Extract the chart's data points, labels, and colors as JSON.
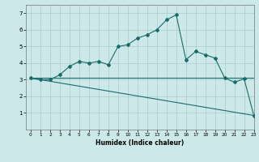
{
  "title": "",
  "xlabel": "Humidex (Indice chaleur)",
  "ylabel": "",
  "xlim": [
    -0.5,
    23
  ],
  "ylim": [
    0,
    7.5
  ],
  "yticks": [
    1,
    2,
    3,
    4,
    5,
    6,
    7
  ],
  "xticks": [
    0,
    1,
    2,
    3,
    4,
    5,
    6,
    7,
    8,
    9,
    10,
    11,
    12,
    13,
    14,
    15,
    16,
    17,
    18,
    19,
    20,
    21,
    22,
    23
  ],
  "bg_color": "#cce8e8",
  "grid_color": "#aacccc",
  "line_color": "#1a6b6b",
  "main_series_x": [
    0,
    1,
    2,
    3,
    4,
    5,
    6,
    7,
    8,
    9,
    10,
    11,
    12,
    13,
    14,
    15,
    16,
    17,
    18,
    19,
    20,
    21,
    22,
    23
  ],
  "main_series_y": [
    3.1,
    3.0,
    3.0,
    3.3,
    3.8,
    4.1,
    4.0,
    4.1,
    3.9,
    5.0,
    5.1,
    5.5,
    5.7,
    6.0,
    6.6,
    6.9,
    4.2,
    4.7,
    4.5,
    4.3,
    3.1,
    2.85,
    3.05,
    0.85
  ],
  "trend_line1_x": [
    0,
    23
  ],
  "trend_line1_y": [
    3.1,
    3.1
  ],
  "trend_line2_x": [
    0,
    23
  ],
  "trend_line2_y": [
    3.1,
    0.85
  ]
}
